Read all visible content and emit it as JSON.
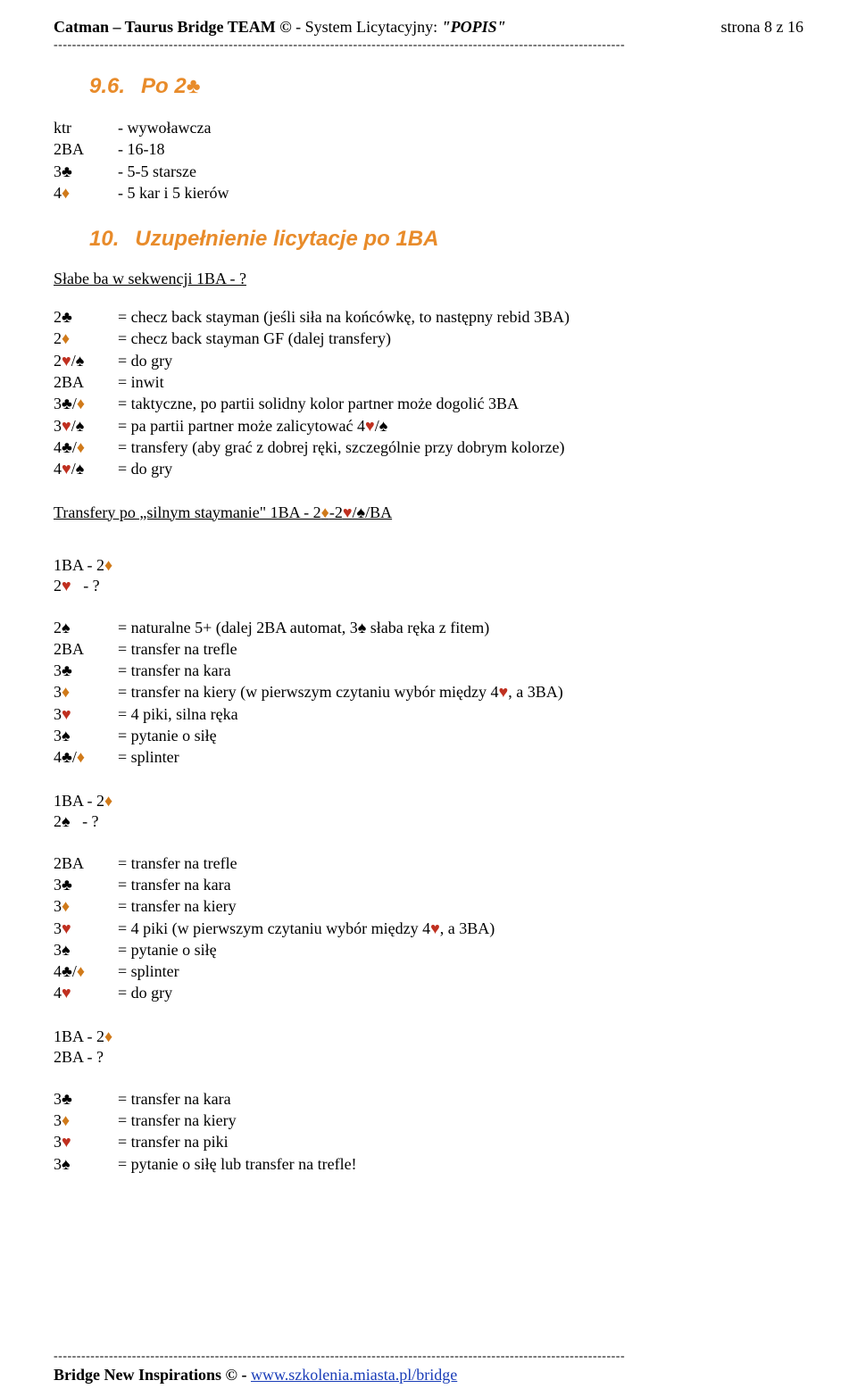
{
  "header": {
    "left_html": "<b>Catman – Taurus Bridge TEAM ©</b> - System Licytacyjny:  <i>\"POPIS\"</i>",
    "right": "strona 8 z 16"
  },
  "dashes": "----------------------------------------------------------------------------------------------------------------------------",
  "section96": {
    "title_html": "<span class='num'>9.6.</span>Po 2♣"
  },
  "defs96": [
    {
      "bid": "ktr",
      "desc": "- wywoławcza"
    },
    {
      "bid": "2BA",
      "desc": "- 16-18"
    },
    {
      "bid": "3♣",
      "desc": "- 5-5 starsze"
    },
    {
      "bid_html": "4<span class='suit-orange'>♦</span>",
      "desc": "- 5 kar i 5 kierów"
    }
  ],
  "section10": {
    "title_html": "<span class='num'>10.</span>Uzupełnienie licytacje po 1BA"
  },
  "intro10": "Słabe ba w sekwencji 1BA - ?",
  "defs10a": [
    {
      "bid": "2♣",
      "desc": "= checz back stayman (jeśli siła na końcówkę, to następny rebid 3BA)"
    },
    {
      "bid_html": "2<span class='suit-orange'>♦</span>",
      "desc": "= checz back stayman GF (dalej transfery)"
    },
    {
      "bid_html": "2<span class='suit-red'>♥</span>/♠",
      "desc": "= do gry"
    },
    {
      "bid": "2BA",
      "desc": "= inwit"
    },
    {
      "bid_html": "3♣/<span class='suit-orange'>♦</span>",
      "desc": "= taktyczne, po partii solidny kolor partner może dogolić 3BA"
    },
    {
      "bid_html": "3<span class='suit-red'>♥</span>/♠",
      "desc_html": "= pa partii partner może zalicytować 4<span class='suit-red'>♥</span>/♠"
    },
    {
      "bid_html": "4♣/<span class='suit-orange'>♦</span>",
      "desc": "= transfery (aby grać z dobrej ręki, szczególnie przy dobrym kolorze)"
    },
    {
      "bid_html": "4<span class='suit-red'>♥</span>/♠",
      "desc": "= do gry"
    }
  ],
  "sub10a_html": "Transfery po „silnym staymanie\" 1BA - 2<span class='suit-orange'>♦</span>-2<span class='suit-red'>♥</span>/♠/BA",
  "seqA1_html": "1BA - 2<span class='suit-orange'>♦</span>",
  "seqA2_html": "2<span class='suit-red'>♥</span>&nbsp;&nbsp; - ?",
  "defs10b": [
    {
      "bid": "2♠",
      "desc": "= naturalne 5+ (dalej 2BA automat, 3♠ słaba ręka z fitem)"
    },
    {
      "bid": "2BA",
      "desc": "= transfer na trefle"
    },
    {
      "bid": "3♣",
      "desc": "= transfer na kara"
    },
    {
      "bid_html": "3<span class='suit-orange'>♦</span>",
      "desc_html": "= transfer na kiery (w pierwszym czytaniu wybór między 4<span class='suit-red'>♥</span>, a 3BA)"
    },
    {
      "bid_html": "3<span class='suit-red'>♥</span>",
      "desc": "= 4 piki, silna ręka"
    },
    {
      "bid": "3♠",
      "desc": "= pytanie o siłę"
    },
    {
      "bid_html": "4♣/<span class='suit-orange'>♦</span>",
      "desc": "= splinter"
    }
  ],
  "seqB1_html": "1BA - 2<span class='suit-orange'>♦</span>",
  "seqB2_html": "2♠&nbsp;&nbsp; - ?",
  "defs10c": [
    {
      "bid": "2BA",
      "desc": "= transfer na trefle"
    },
    {
      "bid": "3♣",
      "desc": "= transfer na kara"
    },
    {
      "bid_html": "3<span class='suit-orange'>♦</span>",
      "desc": "= transfer na kiery"
    },
    {
      "bid_html": "3<span class='suit-red'>♥</span>",
      "desc_html": "= 4 piki (w pierwszym czytaniu wybór między 4<span class='suit-red'>♥</span>, a 3BA)"
    },
    {
      "bid": "3♠",
      "desc": "= pytanie o siłę"
    },
    {
      "bid_html": "4♣/<span class='suit-orange'>♦</span>",
      "desc": "= splinter"
    },
    {
      "bid_html": "4<span class='suit-red'>♥</span>",
      "desc": "= do gry"
    }
  ],
  "seqC1_html": "1BA - 2<span class='suit-orange'>♦</span>",
  "seqC2": "2BA - ?",
  "defs10d": [
    {
      "bid": "3♣",
      "desc": "= transfer na kara"
    },
    {
      "bid_html": "3<span class='suit-orange'>♦</span>",
      "desc": "= transfer na kiery"
    },
    {
      "bid_html": "3<span class='suit-red'>♥</span>",
      "desc": "= transfer na piki"
    },
    {
      "bid": "3♠",
      "desc": "= pytanie o siłę lub transfer na trefle!"
    }
  ],
  "footer": {
    "text_prefix": "Bridge New Inspirations © - ",
    "link_text": "www.szkolenia.miasta.pl/bridge"
  }
}
